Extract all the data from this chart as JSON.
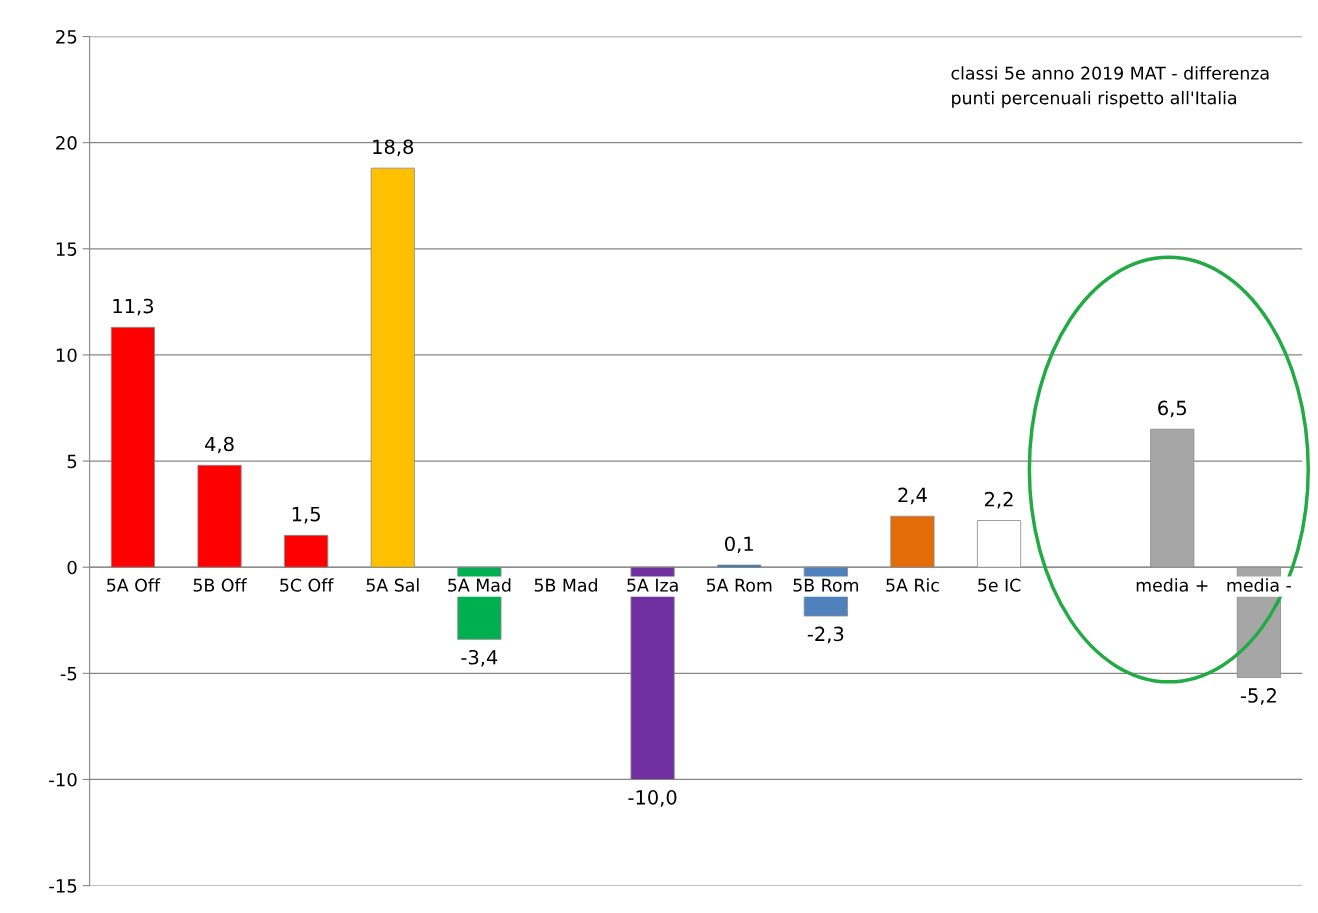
{
  "chart_data": {
    "type": "bar",
    "categories": [
      "5A Off",
      "5B Off",
      "5C Off",
      "5A Sal",
      "5A Mad",
      "5B Mad",
      "5A Iza",
      "5A Rom",
      "5B Rom",
      "5A Ric",
      "5e IC",
      null,
      "media +",
      "media -"
    ],
    "values": [
      11.3,
      4.8,
      1.5,
      18.8,
      -3.4,
      null,
      -10.0,
      0.1,
      -2.3,
      2.4,
      2.2,
      null,
      6.5,
      -5.2
    ],
    "value_labels": [
      "11,3",
      "4,8",
      "1,5",
      "18,8",
      "-3,4",
      null,
      "-10,0",
      "0,1",
      "-2,3",
      "2,4",
      "2,2",
      null,
      "6,5",
      "-5,2"
    ],
    "colors": [
      "#ff0000",
      "#ff0000",
      "#ff0000",
      "#ffc000",
      "#00b050",
      "#a6a6a6",
      "#7030a0",
      "#2e75b6",
      "#4f81bd",
      "#e36c09",
      "#ffffff",
      "#a6a6a6",
      "#a6a6a6",
      "#a6a6a6"
    ],
    "ylim": [
      -15,
      25
    ],
    "yticks": [
      -15,
      -10,
      -5,
      0,
      5,
      10,
      15,
      20,
      25
    ],
    "grid": "y",
    "annotations": [
      "classi 5e anno 2019 MAT - differenza\npunti percenuali rispetto all'Italia"
    ]
  }
}
